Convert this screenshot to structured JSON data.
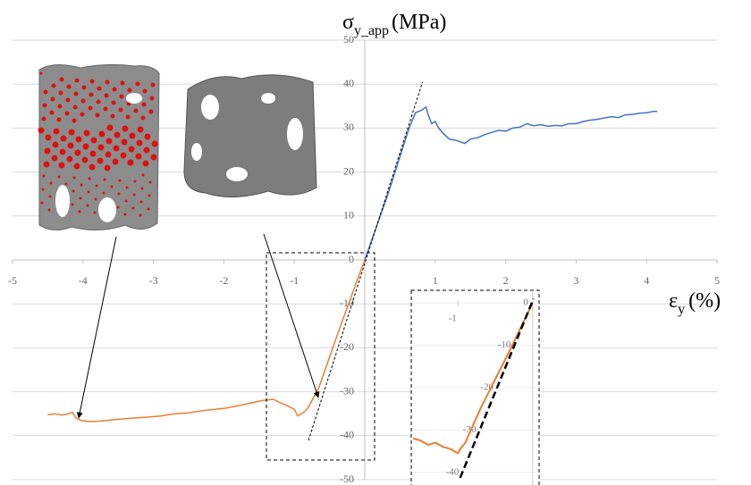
{
  "chart_data": [
    {
      "type": "line",
      "y_label": {
        "symbol": "σ",
        "subscript": "y_app",
        "unit": "(MPa)"
      },
      "x_label": {
        "symbol": "ε",
        "subscript": "y",
        "unit": "(%)"
      },
      "xlim": [
        -5,
        5
      ],
      "ylim": [
        -50,
        50
      ],
      "xticks": [
        -5,
        -4,
        -3,
        -2,
        -1,
        1,
        2,
        3,
        4,
        5
      ],
      "yticks": [
        -50,
        -40,
        -30,
        -20,
        -10,
        0,
        10,
        20,
        30,
        40,
        50
      ],
      "grid": true,
      "series": [
        {
          "color": "#4472c4",
          "x": [
            0,
            0.33,
            0.63,
            0.72,
            0.8,
            0.87,
            0.9,
            0.95,
            1.0,
            1.05,
            1.1,
            1.2,
            1.3,
            1.42,
            1.5,
            1.6,
            1.7,
            1.8,
            1.9,
            2.0,
            2.1,
            2.2,
            2.3,
            2.4,
            2.5,
            2.6,
            2.7,
            2.8,
            2.9,
            3.0,
            3.1,
            3.2,
            3.3,
            3.4,
            3.5,
            3.6,
            3.7,
            3.8,
            3.9,
            4.0,
            4.1,
            4.15
          ],
          "values": [
            0,
            15,
            30,
            33.5,
            34,
            34.8,
            33,
            31,
            31.5,
            30,
            29,
            27.5,
            27.2,
            26.5,
            27.5,
            27.8,
            28.5,
            29,
            29.5,
            29.3,
            30,
            30.2,
            31,
            30.5,
            30.8,
            30.4,
            30.6,
            30.5,
            31,
            31,
            31.5,
            31.8,
            32,
            32.3,
            32.6,
            32.4,
            33,
            33.1,
            33.4,
            33.5,
            33.8,
            33.8
          ]
        },
        {
          "color": "#ed7d31",
          "x": [
            -4.5,
            -4.4,
            -4.3,
            -4.2,
            -4.15,
            -4.1,
            -4.03,
            -3.9,
            -3.7,
            -3.53,
            -3.3,
            -3.1,
            -2.9,
            -2.7,
            -2.5,
            -2.3,
            -2.13,
            -2.0,
            -1.8,
            -1.6,
            -1.45,
            -1.3,
            -1.2,
            -1.12,
            -1.0,
            -0.95,
            -0.85,
            -0.8,
            -0.65,
            -0.4,
            -0.2,
            0
          ],
          "values": [
            -35.2,
            -35,
            -35.3,
            -35,
            -34.7,
            -36,
            -36.5,
            -36.8,
            -36.6,
            -36.3,
            -36,
            -35.8,
            -35.5,
            -35,
            -34.8,
            -34.3,
            -34,
            -33.8,
            -33.2,
            -32.5,
            -32,
            -31.7,
            -32.5,
            -33,
            -34,
            -35.5,
            -34.5,
            -33.5,
            -29,
            -17.5,
            -8.7,
            0
          ]
        }
      ],
      "fit": {
        "color": "#000000",
        "x": [
          -0.8,
          0.82
        ],
        "values": [
          -41.1,
          40.5
        ]
      }
    },
    {
      "type": "line",
      "xlim": [
        -1.6,
        0.05
      ],
      "ylim": [
        -43,
        3
      ],
      "xticks": [
        -1
      ],
      "yticks": [
        0,
        -10,
        -20,
        -30,
        -40
      ],
      "series": [
        {
          "color": "#ed7d31",
          "x": [
            -1.6,
            -1.5,
            -1.4,
            -1.3,
            -1.2,
            -1.1,
            -1.0,
            -0.97,
            -0.9,
            -0.7,
            -0.5,
            -0.3,
            -0.1,
            0
          ],
          "values": [
            -32,
            -32.5,
            -33.5,
            -33,
            -34,
            -34.5,
            -35.5,
            -34.5,
            -33,
            -25,
            -18,
            -11,
            -3.6,
            0
          ]
        }
      ],
      "fit": {
        "color": "#000000",
        "x": [
          -0.97,
          0.01
        ],
        "values": [
          -41.3,
          1
        ]
      }
    }
  ]
}
